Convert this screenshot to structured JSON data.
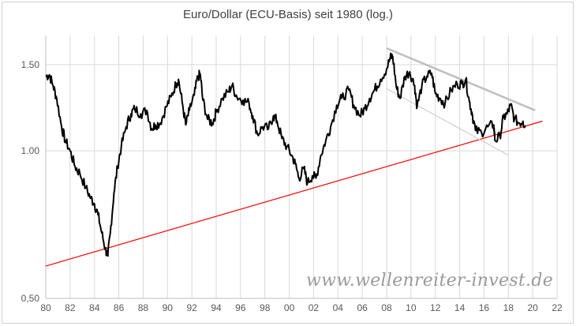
{
  "chart_data": {
    "type": "line",
    "title": "Euro/Dollar (ECU-Basis) seit 1980 (log.)",
    "log_scale": true,
    "grid": true,
    "xlim": [
      1980,
      2022
    ],
    "ylim": [
      0.5,
      1.72
    ],
    "x_ticks": [
      "80",
      "82",
      "84",
      "86",
      "88",
      "90",
      "92",
      "94",
      "96",
      "98",
      "00",
      "02",
      "04",
      "06",
      "08",
      "10",
      "12",
      "14",
      "16",
      "18",
      "20",
      "22"
    ],
    "x_tick_values": [
      1980,
      1982,
      1984,
      1986,
      1988,
      1990,
      1992,
      1994,
      1996,
      1998,
      2000,
      2002,
      2004,
      2006,
      2008,
      2010,
      2012,
      2014,
      2016,
      2018,
      2020,
      2022
    ],
    "y_ticks": [
      "0,50",
      "1.00",
      "1.50"
    ],
    "y_tick_values": [
      0.5,
      1.0,
      1.5
    ],
    "series": [
      {
        "color": "#000000",
        "x": [
          1980.0,
          1980.3,
          1980.6,
          1980.9,
          1981.3,
          1981.6,
          1982.0,
          1982.4,
          1982.8,
          1983.3,
          1983.7,
          1984.0,
          1984.3,
          1984.6,
          1984.9,
          1985.1,
          1985.3,
          1985.6,
          1985.9,
          1986.2,
          1986.6,
          1987.0,
          1987.3,
          1987.8,
          1988.3,
          1988.7,
          1989.0,
          1989.4,
          1989.9,
          1990.3,
          1990.7,
          1990.9,
          1991.2,
          1991.5,
          1991.8,
          1992.2,
          1992.5,
          1992.7,
          1992.9,
          1993.3,
          1993.7,
          1994.0,
          1994.5,
          1995.0,
          1995.3,
          1995.7,
          1996.2,
          1996.7,
          1997.0,
          1997.4,
          1997.8,
          1998.3,
          1998.7,
          1999.0,
          1999.4,
          1999.8,
          2000.2,
          2000.5,
          2000.8,
          2001.2,
          2001.5,
          2001.9,
          2002.2,
          2002.6,
          2003.0,
          2003.4,
          2003.9,
          2004.3,
          2004.9,
          2005.3,
          2005.8,
          2006.2,
          2006.6,
          2007.0,
          2007.5,
          2008.0,
          2008.3,
          2008.5,
          2008.8,
          2009.1,
          2009.5,
          2009.9,
          2010.3,
          2010.5,
          2010.9,
          2011.3,
          2011.7,
          2012.0,
          2012.4,
          2012.8,
          2013.3,
          2013.8,
          2014.2,
          2014.5,
          2014.8,
          2015.0,
          2015.3,
          2015.8,
          2016.3,
          2016.8,
          2016.9,
          2017.3,
          2017.6,
          2017.9,
          2018.2,
          2018.5,
          2018.9,
          2019.2,
          2019.4
        ],
        "values": [
          1.42,
          1.43,
          1.36,
          1.28,
          1.12,
          1.05,
          1.0,
          0.93,
          0.9,
          0.84,
          0.8,
          0.78,
          0.74,
          0.68,
          0.63,
          0.61,
          0.68,
          0.82,
          0.93,
          1.02,
          1.12,
          1.19,
          1.22,
          1.19,
          1.21,
          1.11,
          1.13,
          1.14,
          1.23,
          1.29,
          1.37,
          1.4,
          1.26,
          1.13,
          1.21,
          1.3,
          1.42,
          1.43,
          1.27,
          1.16,
          1.14,
          1.2,
          1.28,
          1.32,
          1.36,
          1.29,
          1.27,
          1.25,
          1.18,
          1.08,
          1.12,
          1.11,
          1.18,
          1.15,
          1.06,
          1.02,
          0.98,
          0.94,
          0.88,
          0.92,
          0.86,
          0.89,
          0.88,
          0.98,
          1.05,
          1.12,
          1.24,
          1.28,
          1.33,
          1.24,
          1.18,
          1.22,
          1.28,
          1.33,
          1.4,
          1.47,
          1.55,
          1.56,
          1.35,
          1.28,
          1.42,
          1.45,
          1.36,
          1.23,
          1.36,
          1.42,
          1.44,
          1.31,
          1.28,
          1.25,
          1.33,
          1.37,
          1.37,
          1.4,
          1.26,
          1.2,
          1.1,
          1.09,
          1.12,
          1.13,
          1.05,
          1.07,
          1.17,
          1.19,
          1.24,
          1.16,
          1.14,
          1.15,
          1.12
        ]
      }
    ],
    "trendlines": [
      {
        "color": "#ff0000",
        "x": [
          1980,
          2020.8
        ],
        "values": [
          0.582,
          1.15
        ]
      },
      {
        "color": "#bfbfbf",
        "x": [
          2008.0,
          2020.2
        ],
        "values": [
          1.62,
          1.21
        ]
      },
      {
        "color": "#d0d0d0",
        "x": [
          2008.0,
          2018.0
        ],
        "values": [
          1.34,
          0.98
        ]
      }
    ]
  },
  "watermark": "www.wellenreiter-invest.de"
}
